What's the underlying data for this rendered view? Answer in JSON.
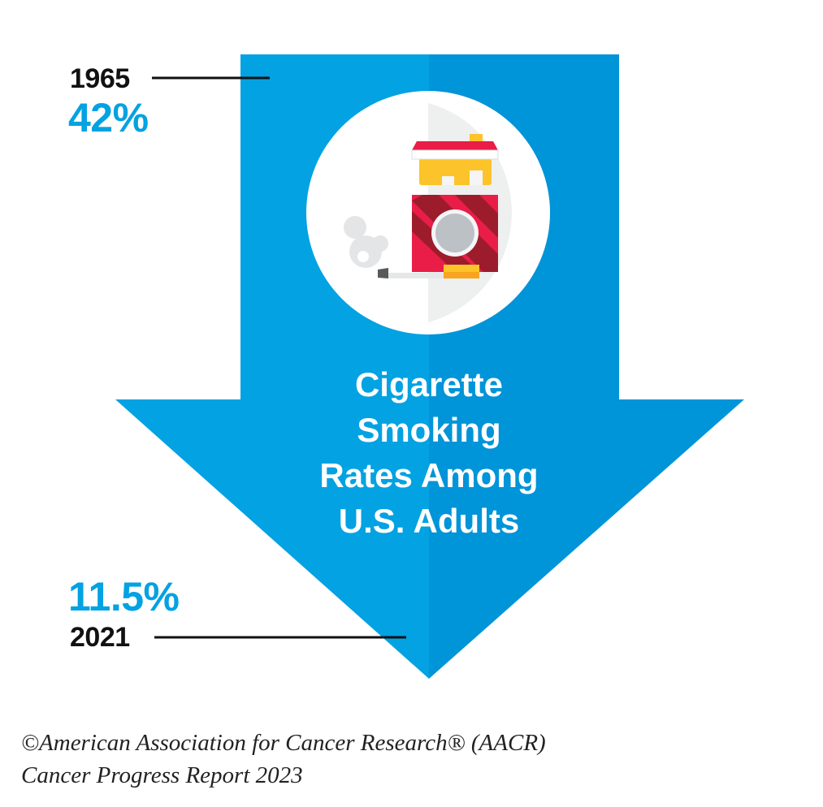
{
  "start": {
    "year": "1965",
    "rate": "42%"
  },
  "end": {
    "rate": "11.5%",
    "year": "2021"
  },
  "title_lines": [
    "Cigarette",
    "Smoking",
    "Rates Among",
    "U.S. Adults"
  ],
  "footer": {
    "line1": "©American Association for Cancer Research® (AACR)",
    "line2": "Cancer Progress Report 2023"
  },
  "colors": {
    "arrow_left": "#03a2e2",
    "arrow_right": "#0094d8",
    "accent_text": "#03a2e2"
  },
  "icon": "cigarette-pack-icon"
}
